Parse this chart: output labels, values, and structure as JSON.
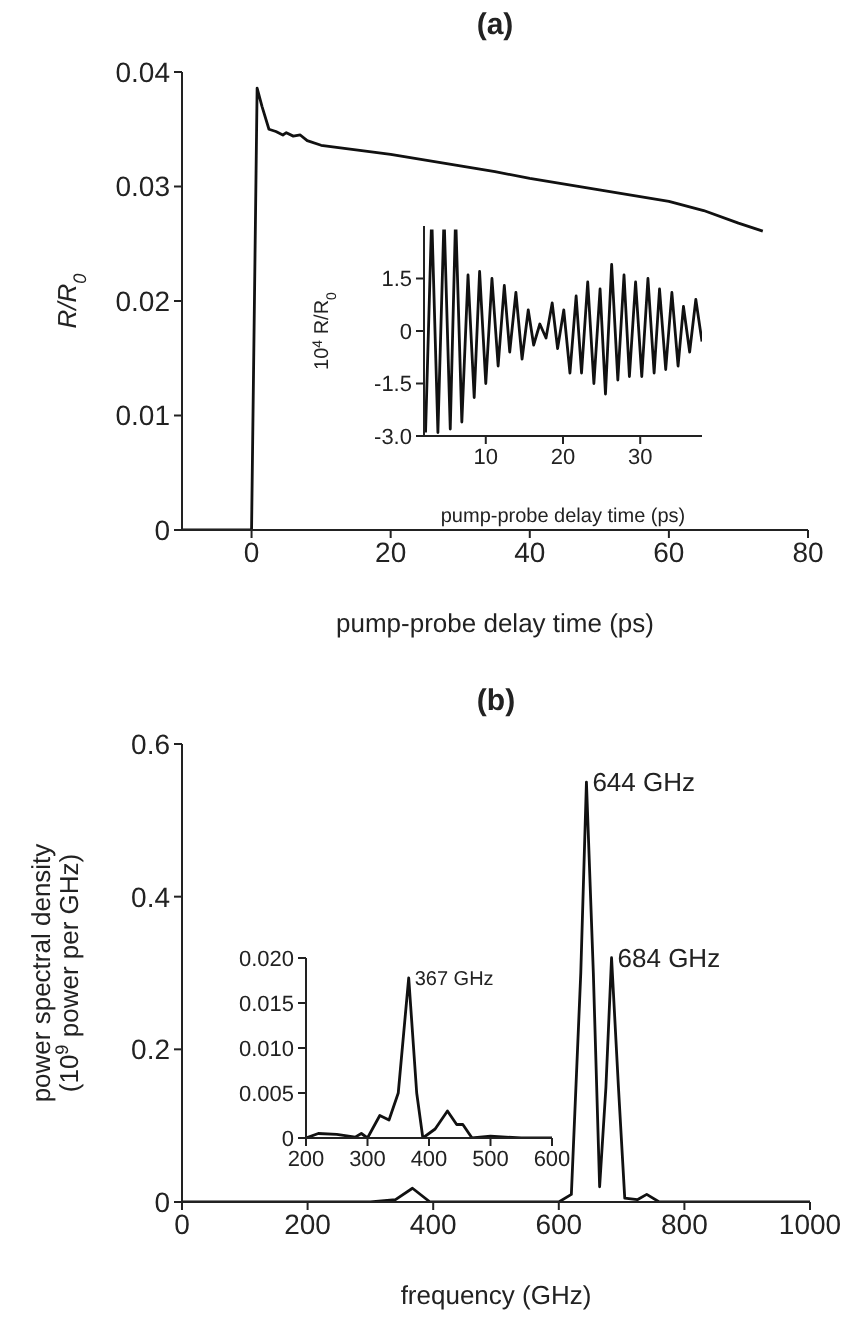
{
  "chart_data": [
    {
      "type": "line",
      "title": "(a)",
      "xlabel": "pump-probe delay time (ps)",
      "ylabel": "R/R$_{0}$",
      "color": "#111111",
      "line_style": "solid",
      "x": [
        -10,
        0,
        0.8,
        1.5,
        2.5,
        3.5,
        4.5,
        5,
        6,
        7,
        8,
        10,
        15,
        20,
        25,
        30,
        35,
        40,
        45,
        50,
        55,
        60,
        65,
        70,
        73.5
      ],
      "values": [
        0,
        0,
        0.0386,
        0.037,
        0.035,
        0.0348,
        0.0345,
        0.0347,
        0.0344,
        0.0345,
        0.034,
        0.0336,
        0.0332,
        0.0328,
        0.0323,
        0.0318,
        0.0313,
        0.0307,
        0.0302,
        0.0297,
        0.0292,
        0.0287,
        0.0279,
        0.0268,
        0.0261
      ],
      "xlim": [
        -10,
        80
      ],
      "xticks": [
        0,
        20,
        40,
        60,
        80
      ],
      "ylim": [
        0,
        0.04
      ],
      "yticks": [
        0,
        0.01,
        0.02,
        0.03,
        0.04
      ],
      "grid": false
    },
    {
      "type": "line",
      "xlabel": "pump-probe delay time (ps)",
      "ylabel": "10$^{4}$ R/R$_{0}$",
      "color": "#111111",
      "line_style": "solid",
      "x": [
        2.2,
        2.95,
        3.0,
        3.05,
        3.8,
        4.55,
        4.6,
        4.65,
        5.4,
        6.05,
        6.1,
        6.15,
        6.9,
        7.7,
        8.5,
        9.2,
        10.0,
        10.8,
        11.6,
        12.4,
        13.1,
        13.9,
        14.7,
        15.5,
        16.2,
        17.0,
        17.8,
        18.6,
        19.3,
        20.1,
        20.9,
        21.7,
        22.4,
        23.2,
        24.0,
        24.8,
        25.5,
        26.3,
        27.1,
        27.9,
        28.6,
        29.4,
        30.2,
        31.0,
        31.8,
        32.5,
        33.3,
        34.1,
        34.9,
        35.6,
        36.4,
        37.2,
        38.0
      ],
      "values": [
        -2.9,
        2.9,
        null,
        2.9,
        -2.9,
        2.9,
        null,
        2.9,
        -2.8,
        2.9,
        null,
        2.9,
        -2.6,
        1.6,
        -1.9,
        1.7,
        -1.5,
        1.5,
        -1.0,
        1.3,
        -0.6,
        1.1,
        -0.8,
        0.6,
        -0.4,
        0.2,
        -0.2,
        0.8,
        -0.5,
        0.6,
        -1.2,
        1.0,
        -1.2,
        1.4,
        -1.5,
        1.2,
        -1.8,
        1.9,
        -1.4,
        1.6,
        -1.3,
        1.4,
        -1.3,
        1.5,
        -1.2,
        1.2,
        -1.1,
        1.1,
        -1.0,
        0.7,
        -0.6,
        0.9,
        -0.3
      ],
      "xlim": [
        2,
        38
      ],
      "xticks": [
        10,
        20,
        30
      ],
      "ylim": [
        -3,
        3
      ],
      "yticks": [
        {
          "value": -3,
          "label": "-3.0"
        },
        -1.5,
        0,
        1.5
      ],
      "grid": false
    },
    {
      "type": "line",
      "title": "(b)",
      "xlabel": "frequency (GHz)",
      "ylabel": "power spectral density\n(10$^{9}$ power per GHz)",
      "color": "#111111",
      "line_style": "solid",
      "x": [
        0,
        300,
        340,
        367,
        395,
        600,
        620,
        635,
        644,
        655,
        665,
        675,
        684,
        695,
        705,
        725,
        740,
        760,
        1000
      ],
      "values": [
        0,
        0,
        0.003,
        0.018,
        0,
        0,
        0.01,
        0.3,
        0.55,
        0.3,
        0.02,
        0.15,
        0.32,
        0.15,
        0.005,
        0.003,
        0.01,
        0,
        0
      ],
      "xlim": [
        0,
        1000
      ],
      "xticks": [
        0,
        200,
        400,
        600,
        800,
        1000
      ],
      "ylim": [
        0,
        0.6
      ],
      "yticks": [
        0,
        0.2,
        0.4,
        0.6
      ],
      "grid": false,
      "annotations": [
        {
          "text": "644 GHz",
          "x": 644,
          "y": 0.55
        },
        {
          "text": "684 GHz",
          "x": 684,
          "y": 0.32
        }
      ]
    },
    {
      "type": "line",
      "color": "#111111",
      "line_style": "solid",
      "x": [
        200,
        220,
        250,
        280,
        290,
        300,
        320,
        335,
        350,
        367,
        380,
        390,
        410,
        430,
        445,
        455,
        470,
        500,
        550,
        600
      ],
      "values": [
        0,
        0.0005,
        0.0004,
        0.0001,
        0.0005,
        0,
        0.0025,
        0.002,
        0.005,
        0.0178,
        0.005,
        0,
        0.001,
        0.003,
        0.0015,
        0.0015,
        0,
        0.0002,
        0,
        0
      ],
      "xlim": [
        200,
        600
      ],
      "xticks": [
        200,
        300,
        400,
        500,
        600
      ],
      "ylim": [
        0,
        0.02
      ],
      "yticks": [
        0,
        {
          "value": 0.005,
          "label": "0.005"
        },
        {
          "value": 0.01,
          "label": "0.010"
        },
        {
          "value": 0.015,
          "label": "0.015"
        },
        {
          "value": 0.02,
          "label": "0.020"
        }
      ],
      "grid": false,
      "annotations": [
        {
          "text": "367 GHz",
          "x": 367,
          "y": 0.0178
        }
      ]
    }
  ]
}
